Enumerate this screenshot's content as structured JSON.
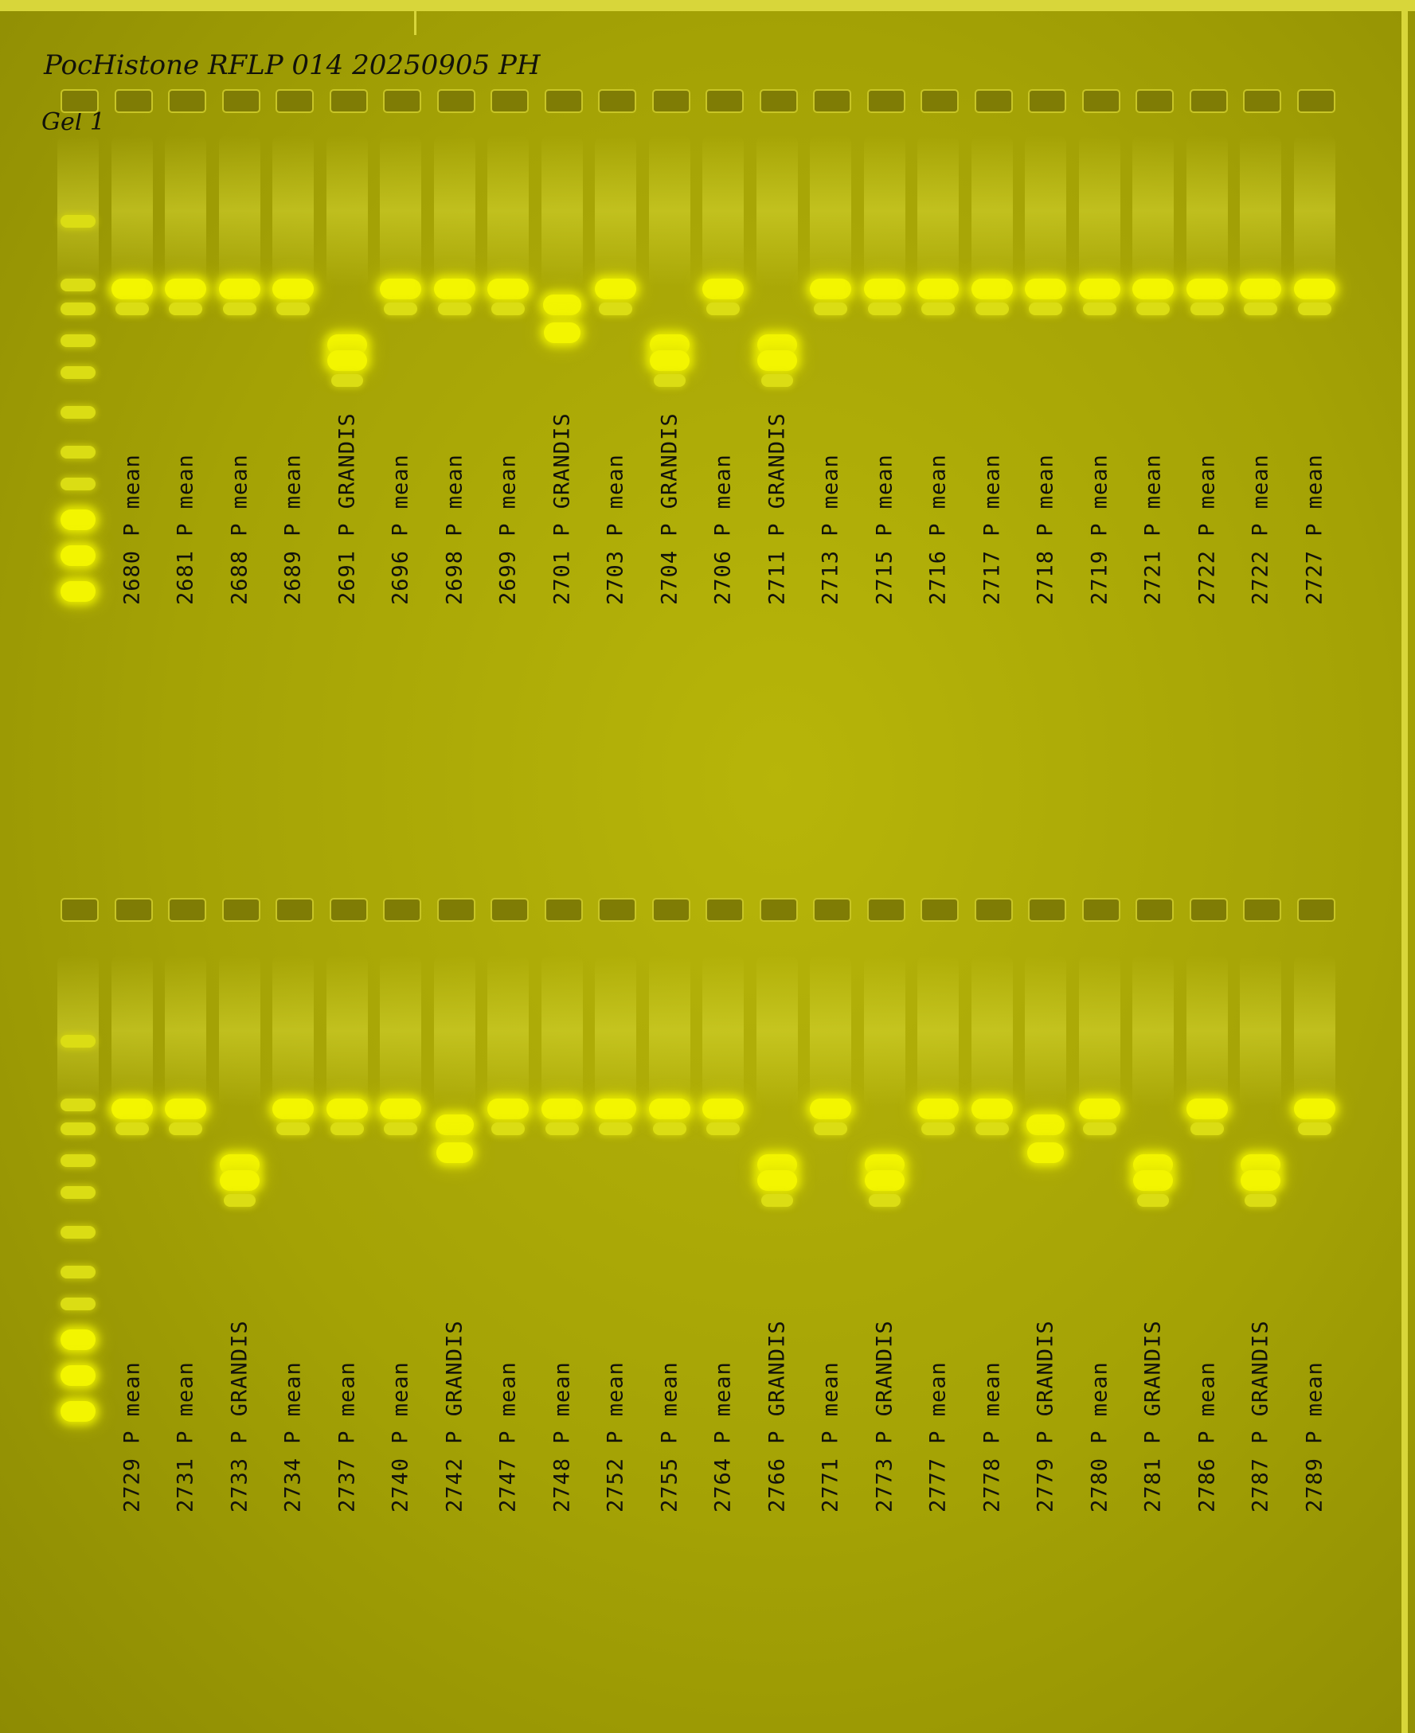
{
  "header": {
    "title": "PocHistone RFLP 014 20250905 PH",
    "gel": "Gel 1"
  },
  "top_row": [
    {
      "label": "",
      "type": "ladder"
    },
    {
      "label": "2680 P mean",
      "type": "mean"
    },
    {
      "label": "2681 P mean",
      "type": "mean"
    },
    {
      "label": "2688 P mean",
      "type": "mean"
    },
    {
      "label": "2689 P mean",
      "type": "mean"
    },
    {
      "label": "2691 P GRANDIS",
      "type": "grandis"
    },
    {
      "label": "2696 P mean",
      "type": "mean"
    },
    {
      "label": "2698 P mean",
      "type": "mean"
    },
    {
      "label": "2699 P mean",
      "type": "mean"
    },
    {
      "label": "2701 P GRANDIS",
      "type": "het"
    },
    {
      "label": "2703 P mean",
      "type": "mean"
    },
    {
      "label": "2704 P GRANDIS",
      "type": "grandis"
    },
    {
      "label": "2706 P mean",
      "type": "mean"
    },
    {
      "label": "2711 P GRANDIS",
      "type": "grandis"
    },
    {
      "label": "2713 P mean",
      "type": "mean"
    },
    {
      "label": "2715 P mean",
      "type": "mean"
    },
    {
      "label": "2716 P mean",
      "type": "mean"
    },
    {
      "label": "2717 P mean",
      "type": "mean"
    },
    {
      "label": "2718 P mean",
      "type": "mean"
    },
    {
      "label": "2719 P mean",
      "type": "mean"
    },
    {
      "label": "2721 P mean",
      "type": "mean"
    },
    {
      "label": "2722 P mean",
      "type": "mean"
    },
    {
      "label": "2722 P mean",
      "type": "mean"
    },
    {
      "label": "2727 P mean",
      "type": "mean"
    }
  ],
  "bottom_row": [
    {
      "label": "",
      "type": "ladder"
    },
    {
      "label": "2729 P mean",
      "type": "mean"
    },
    {
      "label": "2731 P mean",
      "type": "mean"
    },
    {
      "label": "2733 P GRANDIS",
      "type": "grandis"
    },
    {
      "label": "2734 P mean",
      "type": "mean"
    },
    {
      "label": "2737 P mean",
      "type": "mean"
    },
    {
      "label": "2740 P mean",
      "type": "mean"
    },
    {
      "label": "2742 P GRANDIS",
      "type": "het"
    },
    {
      "label": "2747 P mean",
      "type": "mean"
    },
    {
      "label": "2748 P mean",
      "type": "mean"
    },
    {
      "label": "2752 P mean",
      "type": "mean"
    },
    {
      "label": "2755 P mean",
      "type": "mean"
    },
    {
      "label": "2764 P mean",
      "type": "mean"
    },
    {
      "label": "2766 P GRANDIS",
      "type": "grandis"
    },
    {
      "label": "2771 P mean",
      "type": "mean"
    },
    {
      "label": "2773 P GRANDIS",
      "type": "grandis"
    },
    {
      "label": "2777 P mean",
      "type": "mean"
    },
    {
      "label": "2778 P mean",
      "type": "mean"
    },
    {
      "label": "2779 P GRANDIS",
      "type": "het"
    },
    {
      "label": "2780 P mean",
      "type": "mean"
    },
    {
      "label": "2781 P GRANDIS",
      "type": "grandis"
    },
    {
      "label": "2786 P mean",
      "type": "mean"
    },
    {
      "label": "2787 P GRANDIS",
      "type": "grandis"
    },
    {
      "label": "2789 P mean",
      "type": "mean"
    }
  ]
}
